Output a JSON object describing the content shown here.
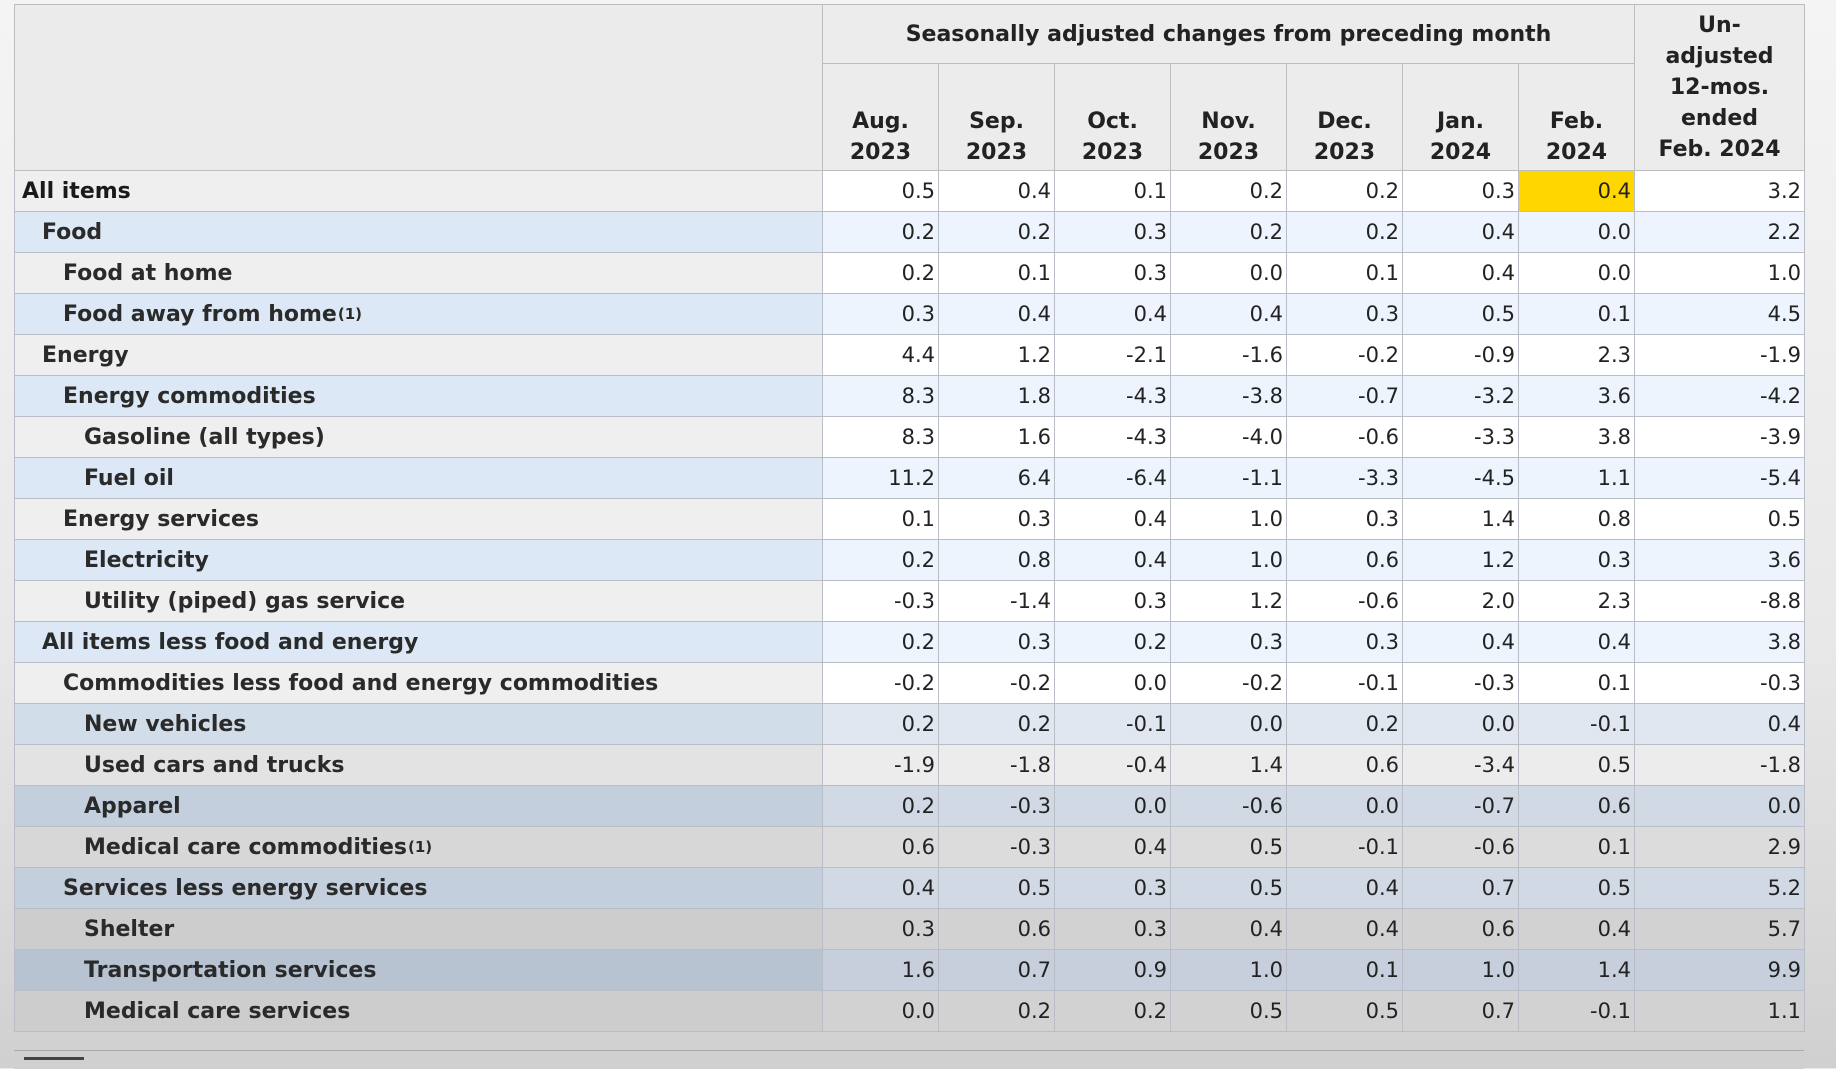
{
  "table": {
    "group_header": "Seasonally adjusted changes from preceding month",
    "columns": [
      {
        "month": "Aug.",
        "year": "2023"
      },
      {
        "month": "Sep.",
        "year": "2023"
      },
      {
        "month": "Oct.",
        "year": "2023"
      },
      {
        "month": "Nov.",
        "year": "2023"
      },
      {
        "month": "Dec.",
        "year": "2023"
      },
      {
        "month": "Jan.",
        "year": "2024"
      },
      {
        "month": "Feb.",
        "year": "2024"
      }
    ],
    "yoy_header": [
      "Un-",
      "adjusted",
      "12-mos.",
      "ended",
      "Feb. 2024"
    ],
    "highlight_color": "#ffd700",
    "rows": [
      {
        "label": "All items",
        "footnote": "",
        "indent": 0,
        "values": [
          "0.5",
          "0.4",
          "0.1",
          "0.2",
          "0.2",
          "0.3",
          "0.4",
          "3.2"
        ]
      },
      {
        "label": "Food",
        "footnote": "",
        "indent": 1,
        "values": [
          "0.2",
          "0.2",
          "0.3",
          "0.2",
          "0.2",
          "0.4",
          "0.0",
          "2.2"
        ]
      },
      {
        "label": "Food at home",
        "footnote": "",
        "indent": 2,
        "values": [
          "0.2",
          "0.1",
          "0.3",
          "0.0",
          "0.1",
          "0.4",
          "0.0",
          "1.0"
        ]
      },
      {
        "label": "Food away from home",
        "footnote": "(1)",
        "indent": 2,
        "values": [
          "0.3",
          "0.4",
          "0.4",
          "0.4",
          "0.3",
          "0.5",
          "0.1",
          "4.5"
        ]
      },
      {
        "label": "Energy",
        "footnote": "",
        "indent": 1,
        "values": [
          "4.4",
          "1.2",
          "-2.1",
          "-1.6",
          "-0.2",
          "-0.9",
          "2.3",
          "-1.9"
        ]
      },
      {
        "label": "Energy commodities",
        "footnote": "",
        "indent": 2,
        "values": [
          "8.3",
          "1.8",
          "-4.3",
          "-3.8",
          "-0.7",
          "-3.2",
          "3.6",
          "-4.2"
        ]
      },
      {
        "label": "Gasoline (all types)",
        "footnote": "",
        "indent": 3,
        "values": [
          "8.3",
          "1.6",
          "-4.3",
          "-4.0",
          "-0.6",
          "-3.3",
          "3.8",
          "-3.9"
        ]
      },
      {
        "label": "Fuel oil",
        "footnote": "",
        "indent": 3,
        "values": [
          "11.2",
          "6.4",
          "-6.4",
          "-1.1",
          "-3.3",
          "-4.5",
          "1.1",
          "-5.4"
        ]
      },
      {
        "label": "Energy services",
        "footnote": "",
        "indent": 2,
        "values": [
          "0.1",
          "0.3",
          "0.4",
          "1.0",
          "0.3",
          "1.4",
          "0.8",
          "0.5"
        ]
      },
      {
        "label": "Electricity",
        "footnote": "",
        "indent": 3,
        "values": [
          "0.2",
          "0.8",
          "0.4",
          "1.0",
          "0.6",
          "1.2",
          "0.3",
          "3.6"
        ]
      },
      {
        "label": "Utility (piped) gas service",
        "footnote": "",
        "indent": 3,
        "values": [
          "-0.3",
          "-1.4",
          "0.3",
          "1.2",
          "-0.6",
          "2.0",
          "2.3",
          "-8.8"
        ]
      },
      {
        "label": "All items less food and energy",
        "footnote": "",
        "indent": 1,
        "values": [
          "0.2",
          "0.3",
          "0.2",
          "0.3",
          "0.3",
          "0.4",
          "0.4",
          "3.8"
        ]
      },
      {
        "label": "Commodities less food and energy commodities",
        "footnote": "",
        "indent": 2,
        "values": [
          "-0.2",
          "-0.2",
          "0.0",
          "-0.2",
          "-0.1",
          "-0.3",
          "0.1",
          "-0.3"
        ]
      },
      {
        "label": "New vehicles",
        "footnote": "",
        "indent": 3,
        "values": [
          "0.2",
          "0.2",
          "-0.1",
          "0.0",
          "0.2",
          "0.0",
          "-0.1",
          "0.4"
        ]
      },
      {
        "label": "Used cars and trucks",
        "footnote": "",
        "indent": 3,
        "values": [
          "-1.9",
          "-1.8",
          "-0.4",
          "1.4",
          "0.6",
          "-3.4",
          "0.5",
          "-1.8"
        ]
      },
      {
        "label": "Apparel",
        "footnote": "",
        "indent": 3,
        "values": [
          "0.2",
          "-0.3",
          "0.0",
          "-0.6",
          "0.0",
          "-0.7",
          "0.6",
          "0.0"
        ]
      },
      {
        "label": "Medical care commodities",
        "footnote": "(1)",
        "indent": 3,
        "values": [
          "0.6",
          "-0.3",
          "0.4",
          "0.5",
          "-0.1",
          "-0.6",
          "0.1",
          "2.9"
        ]
      },
      {
        "label": "Services less energy services",
        "footnote": "",
        "indent": 2,
        "values": [
          "0.4",
          "0.5",
          "0.3",
          "0.5",
          "0.4",
          "0.7",
          "0.5",
          "5.2"
        ]
      },
      {
        "label": "Shelter",
        "footnote": "",
        "indent": 3,
        "values": [
          "0.3",
          "0.6",
          "0.3",
          "0.4",
          "0.4",
          "0.6",
          "0.4",
          "5.7"
        ]
      },
      {
        "label": "Transportation services",
        "footnote": "",
        "indent": 3,
        "values": [
          "1.6",
          "0.7",
          "0.9",
          "1.0",
          "0.1",
          "1.0",
          "1.4",
          "9.9"
        ]
      },
      {
        "label": "Medical care services",
        "footnote": "",
        "indent": 3,
        "values": [
          "0.0",
          "0.2",
          "0.2",
          "0.5",
          "0.5",
          "0.7",
          "-0.1",
          "1.1"
        ]
      }
    ]
  }
}
